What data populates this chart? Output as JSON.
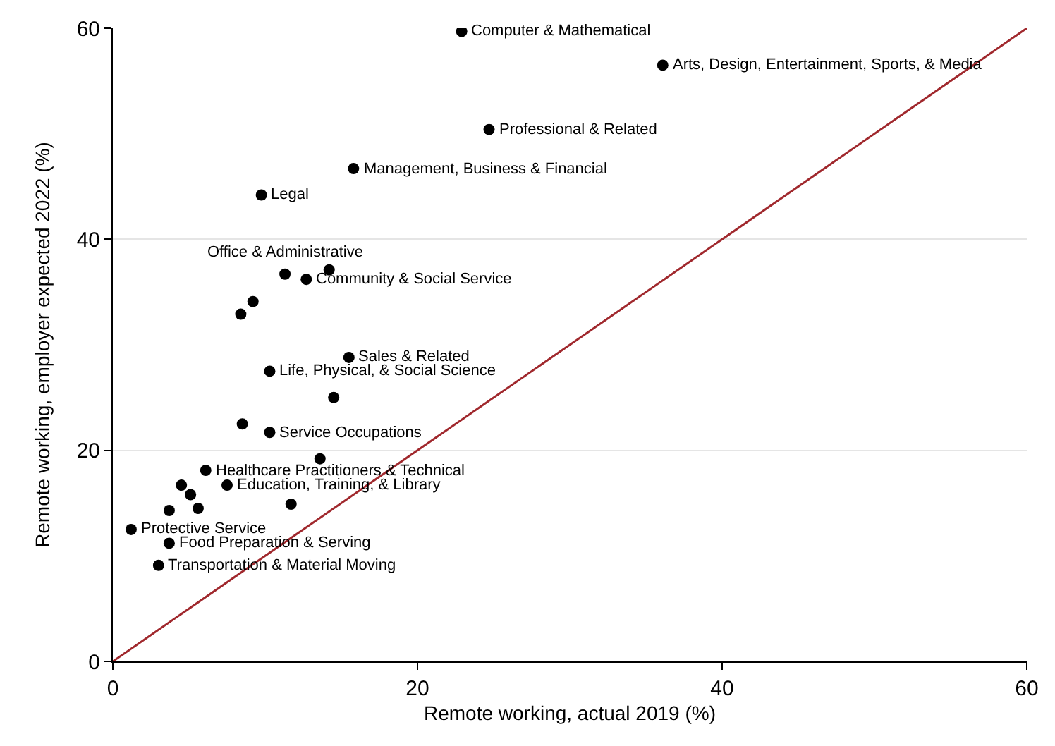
{
  "chart_data": {
    "type": "scatter",
    "xlabel": "Remote working, actual 2019 (%)",
    "ylabel": "Remote working, employer expected 2022 (%)",
    "xlim": [
      0,
      60
    ],
    "ylim": [
      0,
      60
    ],
    "xticks": [
      0,
      20,
      40,
      60
    ],
    "yticks": [
      0,
      20,
      40,
      60
    ],
    "grid": "y",
    "series": [
      {
        "marker": "circle",
        "color": "#000000",
        "x": [
          22.9,
          36.1,
          24.7,
          15.8,
          9.75,
          11.3,
          14.2,
          12.7,
          9.2,
          8.4,
          15.5,
          10.3,
          14.5,
          8.5,
          10.3,
          13.6,
          6.1,
          4.5,
          7.5,
          5.1,
          3.7,
          5.6,
          11.7,
          1.2,
          3.7,
          3.0
        ],
        "values": [
          59.7,
          56.5,
          50.4,
          46.7,
          44.2,
          36.7,
          37.1,
          36.2,
          34.1,
          32.9,
          28.8,
          27.5,
          25.0,
          22.5,
          21.7,
          19.2,
          18.1,
          16.7,
          16.7,
          15.8,
          14.3,
          14.5,
          14.9,
          12.5,
          11.2,
          9.1
        ]
      },
      {
        "type": "line",
        "color": "#a0282d",
        "x": [
          0,
          60
        ],
        "values": [
          0,
          60
        ]
      }
    ],
    "annotations": [
      {
        "text": "Computer & Mathematical",
        "x": 22.9,
        "y": 59.7
      },
      {
        "text": "Arts, Design, Entertainment, Sports, & Media",
        "x": 36.1,
        "y": 56.5
      },
      {
        "text": "Professional & Related",
        "x": 24.7,
        "y": 50.4
      },
      {
        "text": "Management, Business & Financial",
        "x": 15.8,
        "y": 46.7
      },
      {
        "text": "Legal",
        "x": 9.75,
        "y": 44.2
      },
      {
        "text": "Office & Administrative",
        "x": 11.3,
        "y": 36.7
      },
      {
        "text": "Community & Social Service",
        "x": 12.7,
        "y": 36.2
      },
      {
        "text": "Sales & Related",
        "x": 15.5,
        "y": 28.8
      },
      {
        "text": "Life, Physical, & Social Science",
        "x": 10.3,
        "y": 27.5
      },
      {
        "text": "Service Occupations",
        "x": 10.3,
        "y": 21.7
      },
      {
        "text": "Healthcare Practitioners & Technical",
        "x": 6.1,
        "y": 18.1
      },
      {
        "text": "Education, Training, & Library",
        "x": 7.5,
        "y": 16.7
      },
      {
        "text": "Protective Service",
        "x": 1.2,
        "y": 12.5
      },
      {
        "text": "Food Preparation & Serving",
        "x": 3.7,
        "y": 11.2
      },
      {
        "text": "Transportation & Material Moving",
        "x": 3.0,
        "y": 9.1
      }
    ]
  }
}
